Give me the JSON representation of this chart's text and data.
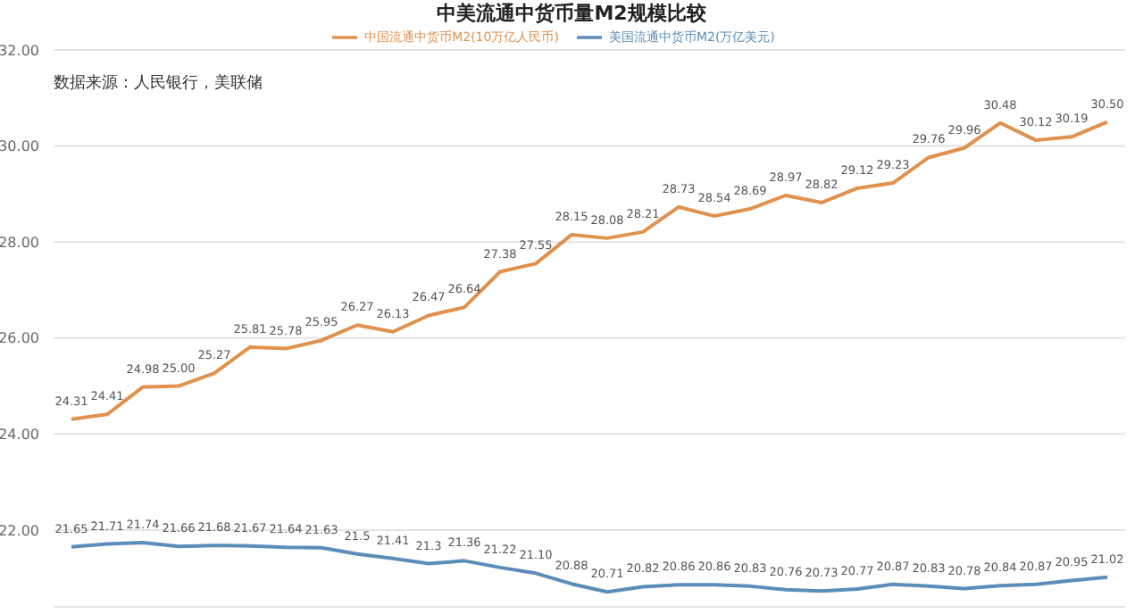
{
  "chart_data": {
    "type": "line",
    "title": "中美流通中货币量M2规模比较",
    "annotations": [
      "数据来源：人民银行，美联储"
    ],
    "categories": [
      null,
      null,
      null,
      null,
      null,
      null,
      null,
      null,
      null,
      null,
      null,
      null,
      null,
      null,
      null,
      null,
      null,
      null,
      null,
      null,
      null,
      null,
      null,
      null,
      null,
      null,
      null,
      null,
      null,
      null
    ],
    "series": [
      {
        "name": "中国流通中货币M2(10万亿人民币)",
        "color": "#e0914e",
        "values": [
          24.31,
          24.41,
          24.98,
          25.0,
          25.27,
          25.81,
          25.78,
          25.95,
          26.27,
          26.13,
          26.47,
          26.64,
          27.38,
          27.55,
          28.15,
          28.08,
          28.21,
          28.73,
          28.54,
          28.69,
          28.97,
          28.82,
          29.12,
          29.23,
          29.76,
          29.96,
          30.48,
          30.12,
          30.19,
          30.5
        ],
        "value_labels": [
          "24.31",
          "24.41",
          "24.98",
          "25.00",
          "25.27",
          "25.81",
          "25.78",
          "25.95",
          "26.27",
          "26.13",
          "26.47",
          "26.64",
          "27.38",
          "27.55",
          "28.15",
          "28.08",
          "28.21",
          "28.73",
          "28.54",
          "28.69",
          "28.97",
          "28.82",
          "29.12",
          "29.23",
          "29.76",
          "29.96",
          "30.48",
          "30.12",
          "30.19",
          "30.50"
        ]
      },
      {
        "name": "美国流通中货币M2(万亿美元)",
        "color": "#5b8db8",
        "values": [
          21.65,
          21.71,
          21.74,
          21.66,
          21.68,
          21.67,
          21.64,
          21.63,
          21.5,
          21.41,
          21.3,
          21.36,
          21.22,
          21.1,
          20.88,
          20.71,
          20.82,
          20.86,
          20.86,
          20.83,
          20.76,
          20.73,
          20.77,
          20.87,
          20.83,
          20.78,
          20.84,
          20.87,
          20.95,
          21.02
        ],
        "value_labels": [
          "21.65",
          "21.71",
          "21.74",
          "21.66",
          "21.68",
          "21.67",
          "21.64",
          "21.63",
          "21.5",
          "21.41",
          "21.3",
          "21.36",
          "21.22",
          "21.10",
          "20.88",
          "20.71",
          "20.82",
          "20.86",
          "20.86",
          "20.83",
          "20.76",
          "20.73",
          "20.77",
          "20.87",
          "20.83",
          "20.78",
          "20.84",
          "20.87",
          "20.95",
          "21.02"
        ]
      }
    ],
    "ylim": [
      20.4,
      32
    ],
    "yticks": [
      {
        "value": 22,
        "label": "22.00"
      },
      {
        "value": 24,
        "label": "24.00"
      },
      {
        "value": 26,
        "label": "26.00"
      },
      {
        "value": 28,
        "label": "28.00"
      },
      {
        "value": 30,
        "label": "30.00"
      },
      {
        "value": 32,
        "label": "32.00"
      }
    ],
    "grid": "y",
    "legend": "top",
    "marker": "none",
    "line_style": "solid"
  }
}
